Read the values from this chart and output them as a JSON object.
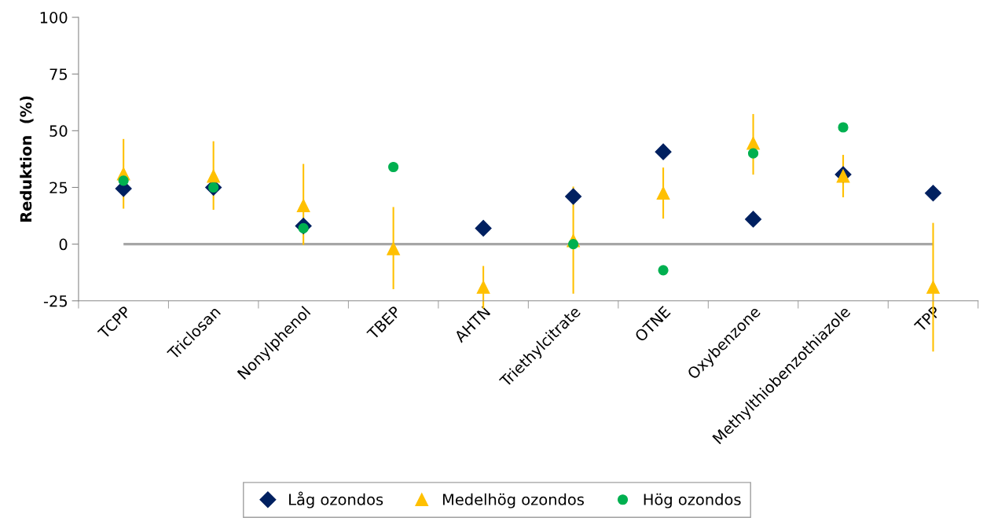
{
  "chart_data": {
    "type": "scatter",
    "ylabel": "Reduktion  (%)",
    "categories": [
      "TCPP",
      "Triclosan",
      "Nonylphenol",
      "TBEP",
      "AHTN",
      "Triethylcitrate",
      "OTNE",
      "Oxybenzone",
      "Methylthiobenzothiazole",
      "TPP"
    ],
    "series": [
      {
        "name": "Låg ozondos",
        "color": "#002060",
        "marker": "diamond",
        "values": [
          24.5,
          25,
          8,
          null,
          7,
          21,
          40.7,
          11,
          30.7,
          22.5
        ]
      },
      {
        "name": "Medelhög ozondos",
        "color": "#ffc000",
        "marker": "triangle",
        "values": [
          31,
          30,
          17,
          -2,
          -19,
          1.5,
          22.5,
          44.5,
          30,
          -19
        ],
        "errors": [
          [
            16,
            46
          ],
          [
            15.5,
            45
          ],
          [
            0,
            35
          ],
          [
            -19.5,
            16
          ],
          [
            -28,
            -10
          ],
          [
            -21.5,
            25
          ],
          [
            11.6,
            33.4
          ],
          [
            31,
            57
          ],
          [
            21,
            39
          ],
          [
            -47,
            9
          ]
        ]
      },
      {
        "name": "Hög ozondos",
        "color": "#00b050",
        "marker": "circle",
        "values": [
          28,
          25,
          7,
          34,
          null,
          0,
          -11.5,
          40,
          51.5,
          null
        ]
      }
    ],
    "ylim": [
      -25,
      100
    ],
    "yticks": [
      -25,
      0,
      25,
      50,
      75,
      100
    ],
    "ref_lines": [
      {
        "axis": "y",
        "value": 0,
        "color": "#a6a6a6"
      }
    ],
    "grid": false,
    "legend": "bottom"
  }
}
